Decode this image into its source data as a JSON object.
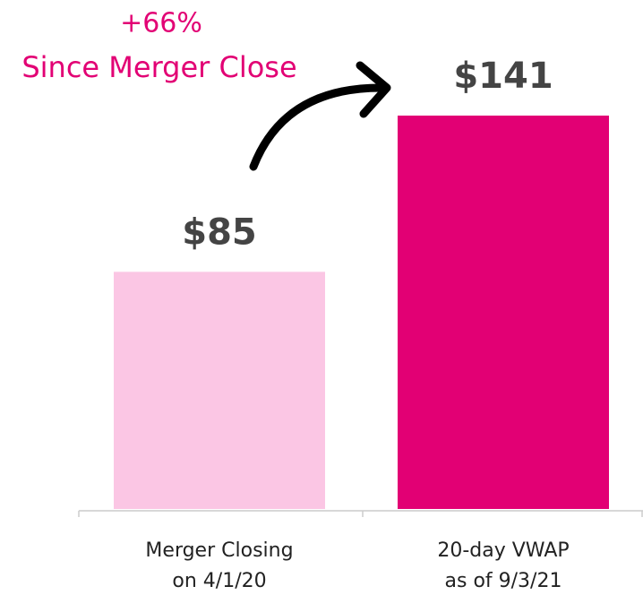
{
  "chart_data": {
    "type": "bar",
    "annotation": "+66%",
    "subtitle": "Since Merger Close",
    "categories": [
      "Merger Closing\non 4/1/20",
      "20-day VWAP\nas of 9/3/21"
    ],
    "values": [
      85,
      141
    ],
    "value_labels": [
      "$85",
      "$141"
    ],
    "colors": [
      "#fbc6e4",
      "#e20074"
    ],
    "annotation_color": "#e20074"
  }
}
